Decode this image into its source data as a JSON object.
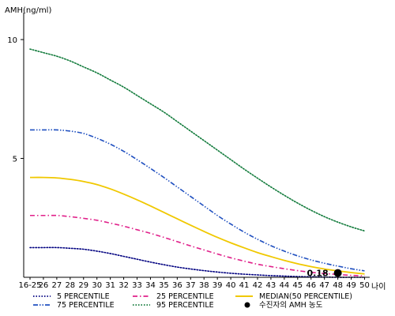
{
  "chart_data": {
    "type": "line",
    "ylabel": "AMH(ng/ml)",
    "xlabel": "나이",
    "ylim": [
      0,
      11
    ],
    "y_ticks": [
      5,
      10
    ],
    "x": [
      "16-25",
      "26",
      "27",
      "28",
      "29",
      "30",
      "31",
      "32",
      "33",
      "34",
      "35",
      "36",
      "37",
      "38",
      "39",
      "40",
      "41",
      "42",
      "43",
      "44",
      "45",
      "46",
      "47",
      "48",
      "49",
      "50"
    ],
    "series": [
      {
        "name": "5 PERCENTILE",
        "color": "#000080",
        "dash": "dotted",
        "values": [
          1.25,
          1.25,
          1.25,
          1.22,
          1.18,
          1.1,
          1.0,
          0.88,
          0.76,
          0.64,
          0.53,
          0.43,
          0.35,
          0.28,
          0.22,
          0.17,
          0.13,
          0.1,
          0.07,
          0.05,
          0.03,
          0.02,
          0.01,
          0.0,
          0.0,
          0.0
        ]
      },
      {
        "name": "25 PERCENTILE",
        "color": "#e0208a",
        "dash": "dashdot",
        "values": [
          2.6,
          2.6,
          2.6,
          2.55,
          2.48,
          2.4,
          2.28,
          2.15,
          2.0,
          1.85,
          1.68,
          1.5,
          1.32,
          1.15,
          0.98,
          0.82,
          0.68,
          0.55,
          0.45,
          0.36,
          0.28,
          0.21,
          0.16,
          0.12,
          0.08,
          0.06
        ]
      },
      {
        "name": "MEDIAN(50 PERCENTILE)",
        "color": "#f0c800",
        "dash": "solid",
        "values": [
          4.2,
          4.2,
          4.18,
          4.12,
          4.03,
          3.9,
          3.72,
          3.5,
          3.26,
          3.0,
          2.73,
          2.46,
          2.19,
          1.93,
          1.68,
          1.45,
          1.24,
          1.04,
          0.87,
          0.71,
          0.57,
          0.45,
          0.35,
          0.27,
          0.2,
          0.14
        ]
      },
      {
        "name": "75 PERCENTILE",
        "color": "#2050c0",
        "dash": "dashdotdot",
        "values": [
          6.2,
          6.2,
          6.2,
          6.15,
          6.05,
          5.85,
          5.6,
          5.3,
          4.95,
          4.58,
          4.2,
          3.8,
          3.4,
          3.0,
          2.6,
          2.24,
          1.9,
          1.6,
          1.33,
          1.1,
          0.9,
          0.73,
          0.59,
          0.47,
          0.36,
          0.27
        ]
      },
      {
        "name": "95 PERCENTILE",
        "color": "#107a3a",
        "dash": "dotted",
        "values": [
          9.6,
          9.45,
          9.3,
          9.1,
          8.85,
          8.6,
          8.3,
          8.0,
          7.65,
          7.3,
          6.95,
          6.55,
          6.15,
          5.75,
          5.35,
          4.95,
          4.55,
          4.17,
          3.8,
          3.45,
          3.12,
          2.82,
          2.55,
          2.32,
          2.12,
          1.95
        ]
      }
    ],
    "marker": {
      "name": "수진자의 AMH 농도",
      "x": "48",
      "y": 0.18,
      "label": "0.18",
      "color": "#000000"
    },
    "legend_position": "bottom"
  }
}
